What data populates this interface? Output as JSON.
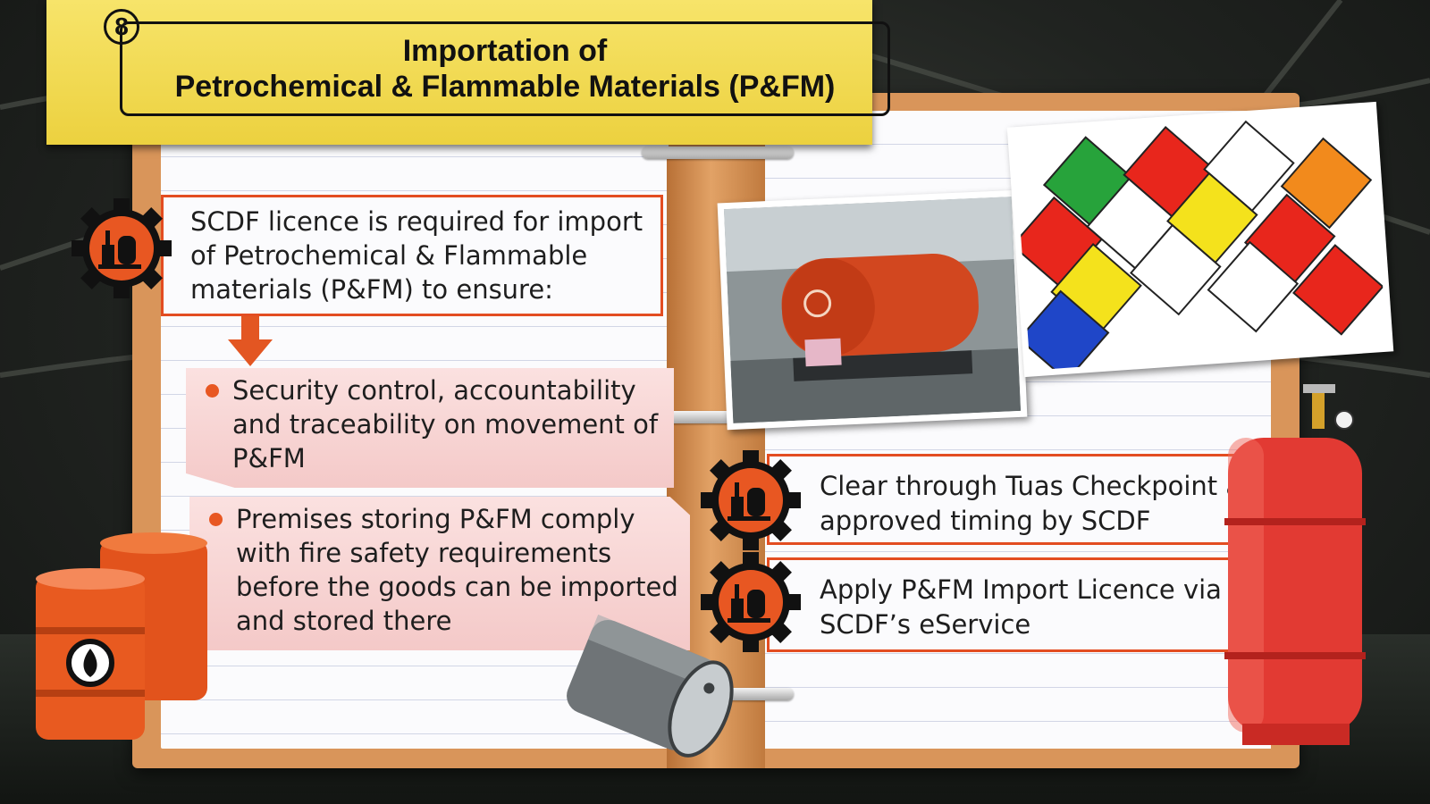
{
  "title": {
    "slide_number": "8",
    "line1": "Importation of",
    "line2": "Petrochemical & Flammable Materials (P&FM)"
  },
  "intro": {
    "text": "SCDF licence is required for import of Petrochemical & Flammable materials (P&FM) to ensure:",
    "icon": "industrial-plant-gear-icon"
  },
  "bullets": [
    "Security control, accountability and traceability on movement of P&FM",
    "Premises storing P&FM comply with fire safety requirements before the goods can be imported and stored there"
  ],
  "steps": [
    {
      "text": "Clear through Tuas Checkpoint at approved timing by SCDF",
      "icon": "industrial-plant-gear-icon"
    },
    {
      "text": "Apply P&FM Import Licence via SCDF’s eService",
      "icon": "industrial-plant-gear-icon"
    }
  ],
  "images": [
    {
      "name": "tanker-truck-photo"
    },
    {
      "name": "hazard-placards-photo"
    }
  ],
  "colors": {
    "accent": "#e34d21",
    "banner": "#f0d64a",
    "note": "#f6d2d1",
    "notebook": "#d9955a"
  }
}
